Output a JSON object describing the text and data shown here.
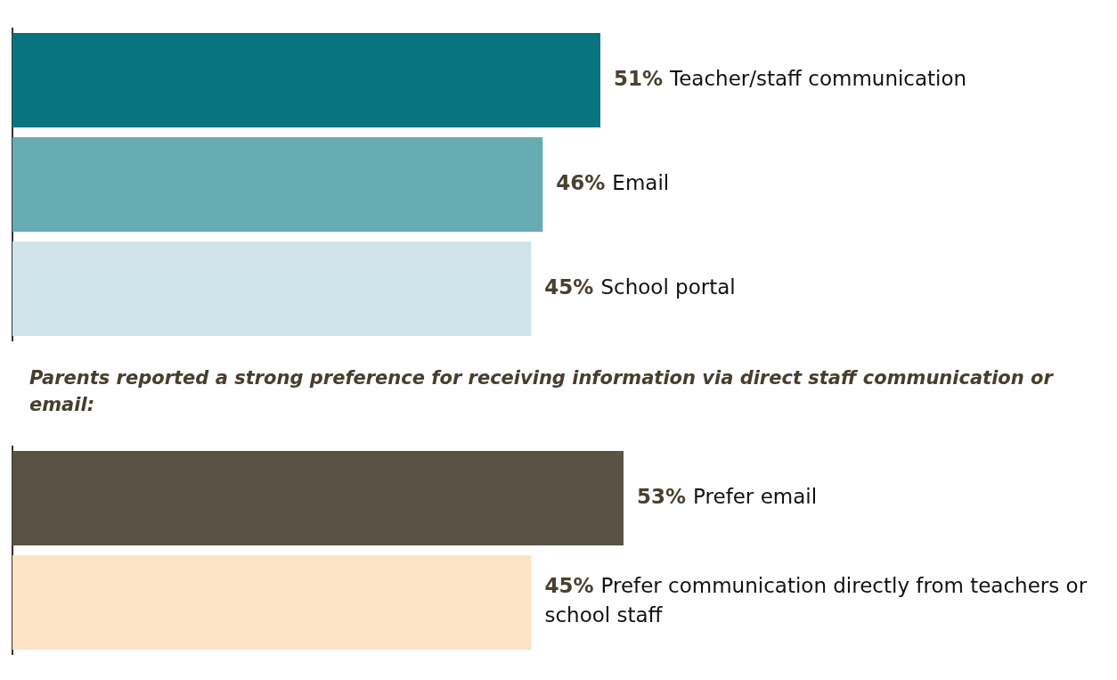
{
  "chart_data": [
    {
      "type": "bar",
      "orientation": "horizontal",
      "categories": [
        null,
        null,
        null
      ],
      "values": [
        51,
        46,
        45
      ],
      "colors": [
        "#077480",
        "#67acb2",
        "#cde4e8"
      ],
      "value_labels": [
        "51% Teacher/staff communication",
        "46% Email",
        "45% School portal"
      ],
      "tick_labels": false
    },
    {
      "type": "bar",
      "orientation": "horizontal",
      "title": "Parents reported a strong preference for receiving information via direct staff communication or email:",
      "categories": [
        null,
        null
      ],
      "values": [
        53,
        45
      ],
      "colors": [
        "#5a5245",
        "#fbe3c4"
      ],
      "value_labels": [
        "53% Prefer email",
        "45% Prefer communication directly from teachers or school staff"
      ],
      "tick_labels": false
    }
  ]
}
